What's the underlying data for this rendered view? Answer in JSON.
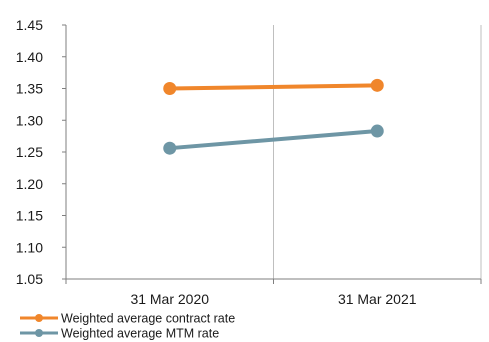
{
  "chart_data": {
    "type": "line",
    "categories": [
      "31 Mar 2020",
      "31 Mar 2021"
    ],
    "ylim": [
      1.05,
      1.45
    ],
    "yticks": [
      "1.05",
      "1.10",
      "1.15",
      "1.20",
      "1.25",
      "1.30",
      "1.35",
      "1.40",
      "1.45"
    ],
    "grid": {
      "horizontal": false,
      "vertical": true
    },
    "legend": "bottom-left",
    "series": [
      {
        "name": "Weighted average contract rate",
        "values": [
          1.35,
          1.355
        ],
        "color": "#F0862B"
      },
      {
        "name": "Weighted average MTM rate",
        "values": [
          1.256,
          1.283
        ],
        "color": "#6E96A5"
      }
    ]
  }
}
